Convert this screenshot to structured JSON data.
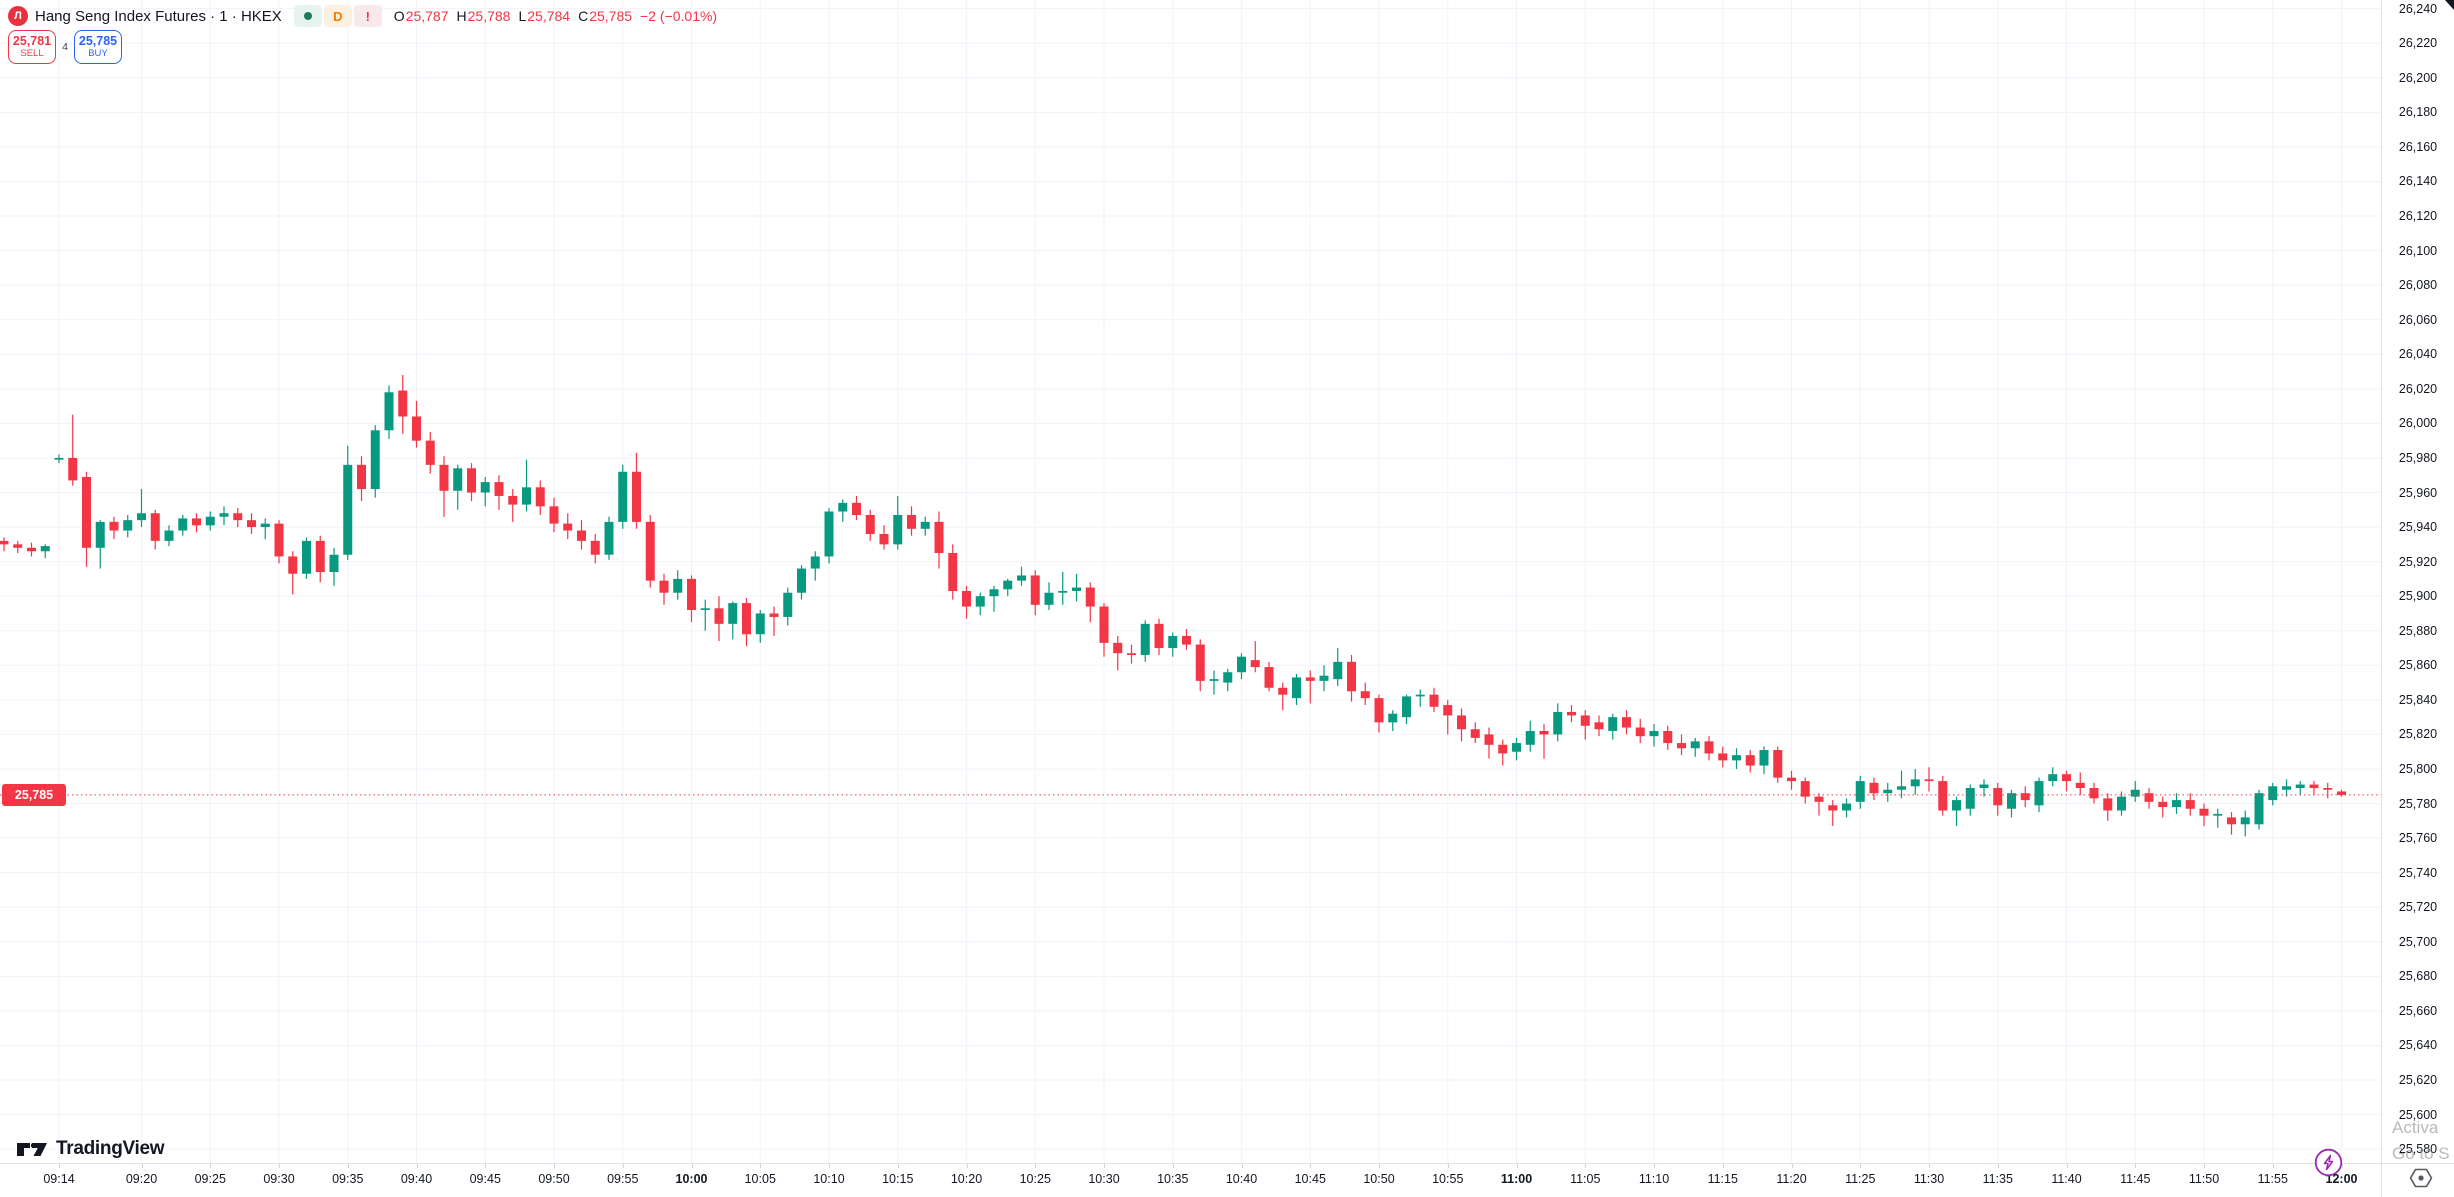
{
  "header": {
    "logo_glyph": "Л",
    "symbol_title": "Hang Seng Index Futures · 1 · HKEX",
    "badges": {
      "market_status": "open",
      "delayed_label": "D",
      "alert_label": "!"
    },
    "ohlc": {
      "o_label": "O",
      "o": "25,787",
      "h_label": "H",
      "h": "25,788",
      "l_label": "L",
      "l": "25,784",
      "c_label": "C",
      "c": "25,785",
      "change": "−2 (−0.01%)"
    }
  },
  "order_panel": {
    "sell_price": "25,781",
    "sell_label": "SELL",
    "spread": "4",
    "buy_price": "25,785",
    "buy_label": "BUY"
  },
  "brand": {
    "name": "TradingView"
  },
  "price_axis": {
    "labels": [
      "26,240",
      "26,220",
      "26,200",
      "26,180",
      "26,160",
      "26,140",
      "26,120",
      "26,100",
      "26,080",
      "26,060",
      "26,040",
      "26,020",
      "26,000",
      "25,980",
      "25,960",
      "25,940",
      "25,920",
      "25,900",
      "25,880",
      "25,860",
      "25,840",
      "25,820",
      "25,800",
      "25,780",
      "25,760",
      "25,740",
      "25,720",
      "25,700",
      "25,680",
      "25,660",
      "25,640",
      "25,620",
      "25,600",
      "25,580"
    ],
    "last_price_tag": "25,785"
  },
  "time_axis": {
    "labels": [
      {
        "label": "09:14",
        "bold": false
      },
      {
        "label": "09:20",
        "bold": false
      },
      {
        "label": "09:25",
        "bold": false
      },
      {
        "label": "09:30",
        "bold": false
      },
      {
        "label": "09:35",
        "bold": false
      },
      {
        "label": "09:40",
        "bold": false
      },
      {
        "label": "09:45",
        "bold": false
      },
      {
        "label": "09:50",
        "bold": false
      },
      {
        "label": "09:55",
        "bold": false
      },
      {
        "label": "10:00",
        "bold": true
      },
      {
        "label": "10:05",
        "bold": false
      },
      {
        "label": "10:10",
        "bold": false
      },
      {
        "label": "10:15",
        "bold": false
      },
      {
        "label": "10:20",
        "bold": false
      },
      {
        "label": "10:25",
        "bold": false
      },
      {
        "label": "10:30",
        "bold": false
      },
      {
        "label": "10:35",
        "bold": false
      },
      {
        "label": "10:40",
        "bold": false
      },
      {
        "label": "10:45",
        "bold": false
      },
      {
        "label": "10:50",
        "bold": false
      },
      {
        "label": "10:55",
        "bold": false
      },
      {
        "label": "11:00",
        "bold": true
      },
      {
        "label": "11:05",
        "bold": false
      },
      {
        "label": "11:10",
        "bold": false
      },
      {
        "label": "11:15",
        "bold": false
      },
      {
        "label": "11:20",
        "bold": false
      },
      {
        "label": "11:25",
        "bold": false
      },
      {
        "label": "11:30",
        "bold": false
      },
      {
        "label": "11:35",
        "bold": false
      },
      {
        "label": "11:40",
        "bold": false
      },
      {
        "label": "11:45",
        "bold": false
      },
      {
        "label": "11:50",
        "bold": false
      },
      {
        "label": "11:55",
        "bold": false
      },
      {
        "label": "12:00",
        "bold": true
      }
    ]
  },
  "os_watermark": {
    "line1": "Activa",
    "line2": "Go to S"
  },
  "chart_data": {
    "type": "candlestick",
    "title": "Hang Seng Index Futures, 1, HKEX",
    "interval": "1",
    "visible_time_range": [
      "09:10",
      "12:00"
    ],
    "ylim": [
      25572,
      26245
    ],
    "grid": true,
    "price_line": 25785,
    "colors": {
      "up": "#089981",
      "down": "#f23645",
      "grid": "#f0f3fa",
      "price_line": "#f23645"
    },
    "candles": [
      [
        "09:10",
        25932,
        25934,
        25926,
        25930
      ],
      [
        "09:11",
        25930,
        25932,
        25925,
        25928
      ],
      [
        "09:12",
        25928,
        25931,
        25923,
        25926
      ],
      [
        "09:13",
        25926,
        25930,
        25922,
        25929
      ],
      [
        "09:14",
        25979,
        25982,
        25977,
        25980
      ],
      [
        "09:15",
        25980,
        26005,
        25964,
        25967
      ],
      [
        "09:16",
        25969,
        25972,
        25917,
        25928
      ],
      [
        "09:17",
        25928,
        25944,
        25916,
        25943
      ],
      [
        "09:18",
        25943,
        25946,
        25933,
        25938
      ],
      [
        "09:19",
        25938,
        25947,
        25934,
        25944
      ],
      [
        "09:20",
        25944,
        25962,
        25940,
        25948
      ],
      [
        "09:21",
        25948,
        25950,
        25927,
        25932
      ],
      [
        "09:22",
        25932,
        25941,
        25929,
        25938
      ],
      [
        "09:23",
        25938,
        25947,
        25935,
        25945
      ],
      [
        "09:24",
        25945,
        25948,
        25937,
        25941
      ],
      [
        "09:25",
        25941,
        25949,
        25938,
        25946
      ],
      [
        "09:26",
        25946,
        25952,
        25941,
        25948
      ],
      [
        "09:27",
        25948,
        25951,
        25940,
        25944
      ],
      [
        "09:28",
        25944,
        25948,
        25936,
        25940
      ],
      [
        "09:29",
        25940,
        25945,
        25933,
        25942
      ],
      [
        "09:30",
        25942,
        25944,
        25919,
        25923
      ],
      [
        "09:31",
        25923,
        25926,
        25901,
        25913
      ],
      [
        "09:32",
        25913,
        25934,
        25910,
        25932
      ],
      [
        "09:33",
        25932,
        25935,
        25908,
        25914
      ],
      [
        "09:34",
        25914,
        25928,
        25906,
        25924
      ],
      [
        "09:35",
        25924,
        25987,
        25921,
        25976
      ],
      [
        "09:36",
        25976,
        25981,
        25955,
        25962
      ],
      [
        "09:37",
        25962,
        25999,
        25957,
        25996
      ],
      [
        "09:38",
        25996,
        26022,
        25991,
        26018
      ],
      [
        "09:39",
        26019,
        26028,
        25994,
        26004
      ],
      [
        "09:40",
        26004,
        26013,
        25986,
        25990
      ],
      [
        "09:41",
        25990,
        25995,
        25971,
        25976
      ],
      [
        "09:42",
        25976,
        25981,
        25946,
        25961
      ],
      [
        "09:43",
        25961,
        25976,
        25950,
        25974
      ],
      [
        "09:44",
        25974,
        25977,
        25955,
        25960
      ],
      [
        "09:45",
        25960,
        25969,
        25952,
        25966
      ],
      [
        "09:46",
        25966,
        25970,
        25950,
        25958
      ],
      [
        "09:47",
        25958,
        25962,
        25943,
        25953
      ],
      [
        "09:48",
        25953,
        25979,
        25949,
        25963
      ],
      [
        "09:49",
        25963,
        25967,
        25947,
        25952
      ],
      [
        "09:50",
        25952,
        25957,
        25937,
        25942
      ],
      [
        "09:51",
        25942,
        25948,
        25933,
        25938
      ],
      [
        "09:52",
        25938,
        25944,
        25927,
        25932
      ],
      [
        "09:53",
        25932,
        25936,
        25919,
        25924
      ],
      [
        "09:54",
        25924,
        25946,
        25921,
        25943
      ],
      [
        "09:55",
        25943,
        25976,
        25939,
        25972
      ],
      [
        "09:56",
        25972,
        25983,
        25939,
        25943
      ],
      [
        "09:57",
        25943,
        25947,
        25905,
        25909
      ],
      [
        "09:58",
        25909,
        25913,
        25895,
        25902
      ],
      [
        "09:59",
        25902,
        25915,
        25898,
        25910
      ],
      [
        "10:00",
        25910,
        25912,
        25885,
        25892
      ],
      [
        "10:01",
        25892,
        25898,
        25880,
        25893
      ],
      [
        "10:02",
        25893,
        25900,
        25874,
        25884
      ],
      [
        "10:03",
        25884,
        25897,
        25875,
        25896
      ],
      [
        "10:04",
        25896,
        25899,
        25871,
        25878
      ],
      [
        "10:05",
        25878,
        25892,
        25873,
        25890
      ],
      [
        "10:06",
        25890,
        25894,
        25877,
        25888
      ],
      [
        "10:07",
        25888,
        25905,
        25883,
        25902
      ],
      [
        "10:08",
        25902,
        25918,
        25898,
        25916
      ],
      [
        "10:09",
        25916,
        25926,
        25909,
        25923
      ],
      [
        "10:10",
        25923,
        25951,
        25919,
        25949
      ],
      [
        "10:11",
        25949,
        25956,
        25943,
        25954
      ],
      [
        "10:12",
        25954,
        25958,
        25944,
        25947
      ],
      [
        "10:13",
        25947,
        25950,
        25932,
        25936
      ],
      [
        "10:14",
        25936,
        25941,
        25927,
        25930
      ],
      [
        "10:15",
        25930,
        25958,
        25927,
        25947
      ],
      [
        "10:16",
        25947,
        25952,
        25935,
        25939
      ],
      [
        "10:17",
        25939,
        25946,
        25935,
        25943
      ],
      [
        "10:18",
        25943,
        25949,
        25916,
        25925
      ],
      [
        "10:19",
        25925,
        25930,
        25898,
        25903
      ],
      [
        "10:20",
        25903,
        25906,
        25887,
        25894
      ],
      [
        "10:21",
        25894,
        25902,
        25889,
        25900
      ],
      [
        "10:22",
        25900,
        25906,
        25891,
        25904
      ],
      [
        "10:23",
        25904,
        25910,
        25900,
        25909
      ],
      [
        "10:24",
        25909,
        25917,
        25906,
        25912
      ],
      [
        "10:25",
        25912,
        25915,
        25889,
        25895
      ],
      [
        "10:26",
        25895,
        25908,
        25892,
        25902
      ],
      [
        "10:27",
        25902,
        25914,
        25895,
        25903
      ],
      [
        "10:28",
        25903,
        25913,
        25897,
        25905
      ],
      [
        "10:29",
        25905,
        25908,
        25885,
        25894
      ],
      [
        "10:30",
        25894,
        25896,
        25865,
        25873
      ],
      [
        "10:31",
        25873,
        25877,
        25857,
        25867
      ],
      [
        "10:32",
        25867,
        25872,
        25861,
        25866
      ],
      [
        "10:33",
        25866,
        25886,
        25862,
        25884
      ],
      [
        "10:34",
        25884,
        25887,
        25866,
        25870
      ],
      [
        "10:35",
        25870,
        25879,
        25865,
        25877
      ],
      [
        "10:36",
        25877,
        25881,
        25869,
        25872
      ],
      [
        "10:37",
        25872,
        25875,
        25845,
        25851
      ],
      [
        "10:38",
        25851,
        25857,
        25843,
        25852
      ],
      [
        "10:39",
        25850,
        25858,
        25845,
        25856
      ],
      [
        "10:40",
        25856,
        25867,
        25852,
        25865
      ],
      [
        "10:41",
        25863,
        25874,
        25856,
        25859
      ],
      [
        "10:42",
        25859,
        25862,
        25845,
        25847
      ],
      [
        "10:43",
        25847,
        25850,
        25834,
        25843
      ],
      [
        "10:44",
        25841,
        25855,
        25837,
        25853
      ],
      [
        "10:45",
        25853,
        25857,
        25838,
        25851
      ],
      [
        "10:46",
        25851,
        25860,
        25845,
        25854
      ],
      [
        "10:47",
        25852,
        25870,
        25848,
        25862
      ],
      [
        "10:48",
        25862,
        25866,
        25839,
        25845
      ],
      [
        "10:49",
        25845,
        25850,
        25837,
        25841
      ],
      [
        "10:50",
        25841,
        25843,
        25821,
        25827
      ],
      [
        "10:51",
        25827,
        25834,
        25822,
        25832
      ],
      [
        "10:52",
        25830,
        25843,
        25826,
        25842
      ],
      [
        "10:53",
        25842,
        25846,
        25836,
        25843
      ],
      [
        "10:54",
        25843,
        25847,
        25833,
        25836
      ],
      [
        "10:55",
        25837,
        25840,
        25820,
        25831
      ],
      [
        "10:56",
        25831,
        25835,
        25816,
        25823
      ],
      [
        "10:57",
        25823,
        25827,
        25815,
        25818
      ],
      [
        "10:58",
        25820,
        25824,
        25806,
        25814
      ],
      [
        "10:59",
        25814,
        25817,
        25802,
        25809
      ],
      [
        "11:00",
        25810,
        25818,
        25805,
        25815
      ],
      [
        "11:01",
        25814,
        25828,
        25810,
        25822
      ],
      [
        "11:02",
        25822,
        25826,
        25806,
        25820
      ],
      [
        "11:03",
        25820,
        25838,
        25816,
        25833
      ],
      [
        "11:04",
        25833,
        25837,
        25827,
        25831
      ],
      [
        "11:05",
        25831,
        25834,
        25817,
        25825
      ],
      [
        "11:06",
        25827,
        25831,
        25819,
        25823
      ],
      [
        "11:07",
        25822,
        25832,
        25817,
        25830
      ],
      [
        "11:08",
        25830,
        25834,
        25820,
        25824
      ],
      [
        "11:09",
        25824,
        25829,
        25815,
        25819
      ],
      [
        "11:10",
        25819,
        25826,
        25813,
        25822
      ],
      [
        "11:11",
        25822,
        25825,
        25811,
        25815
      ],
      [
        "11:12",
        25815,
        25820,
        25808,
        25812
      ],
      [
        "11:13",
        25812,
        25818,
        25807,
        25816
      ],
      [
        "11:14",
        25816,
        25819,
        25805,
        25809
      ],
      [
        "11:15",
        25809,
        25813,
        25801,
        25805
      ],
      [
        "11:16",
        25805,
        25812,
        25800,
        25808
      ],
      [
        "11:17",
        25808,
        25811,
        25798,
        25802
      ],
      [
        "11:18",
        25802,
        25813,
        25797,
        25811
      ],
      [
        "11:19",
        25811,
        25813,
        25792,
        25795
      ],
      [
        "11:20",
        25795,
        25799,
        25788,
        25793
      ],
      [
        "11:21",
        25793,
        25795,
        25780,
        25784
      ],
      [
        "11:22",
        25784,
        25786,
        25773,
        25781
      ],
      [
        "11:23",
        25779,
        25782,
        25767,
        25776
      ],
      [
        "11:24",
        25776,
        25783,
        25772,
        25780
      ],
      [
        "11:25",
        25781,
        25796,
        25777,
        25793
      ],
      [
        "11:26",
        25792,
        25795,
        25782,
        25786
      ],
      [
        "11:27",
        25786,
        25792,
        25781,
        25788
      ],
      [
        "11:28",
        25788,
        25799,
        25783,
        25790
      ],
      [
        "11:29",
        25790,
        25800,
        25785,
        25794
      ],
      [
        "11:30",
        25794,
        25801,
        25787,
        25793
      ],
      [
        "11:31",
        25793,
        25796,
        25773,
        25776
      ],
      [
        "11:32",
        25776,
        25784,
        25767,
        25782
      ],
      [
        "11:33",
        25777,
        25791,
        25773,
        25789
      ],
      [
        "11:34",
        25789,
        25794,
        25784,
        25791
      ],
      [
        "11:35",
        25789,
        25792,
        25773,
        25779
      ],
      [
        "11:36",
        25777,
        25788,
        25772,
        25786
      ],
      [
        "11:37",
        25786,
        25790,
        25778,
        25782
      ],
      [
        "11:38",
        25779,
        25795,
        25775,
        25793
      ],
      [
        "11:39",
        25793,
        25801,
        25790,
        25797
      ],
      [
        "11:40",
        25797,
        25799,
        25787,
        25793
      ],
      [
        "11:41",
        25792,
        25798,
        25785,
        25789
      ],
      [
        "11:42",
        25789,
        25792,
        25780,
        25783
      ],
      [
        "11:43",
        25783,
        25786,
        25770,
        25776
      ],
      [
        "11:44",
        25776,
        25787,
        25773,
        25784
      ],
      [
        "11:45",
        25784,
        25793,
        25781,
        25788
      ],
      [
        "11:46",
        25786,
        25789,
        25777,
        25781
      ],
      [
        "11:47",
        25781,
        25784,
        25772,
        25778
      ],
      [
        "11:48",
        25778,
        25786,
        25774,
        25782
      ],
      [
        "11:49",
        25782,
        25786,
        25773,
        25777
      ],
      [
        "11:50",
        25777,
        25780,
        25767,
        25773
      ],
      [
        "11:51",
        25773,
        25777,
        25766,
        25774
      ],
      [
        "11:52",
        25772,
        25775,
        25762,
        25768
      ],
      [
        "11:53",
        25768,
        25776,
        25761,
        25772
      ],
      [
        "11:54",
        25768,
        25788,
        25765,
        25786
      ],
      [
        "11:55",
        25782,
        25792,
        25779,
        25790
      ],
      [
        "11:56",
        25788,
        25794,
        25784,
        25790
      ],
      [
        "11:57",
        25789,
        25793,
        25785,
        25791
      ],
      [
        "11:58",
        25791,
        25793,
        25785,
        25789
      ],
      [
        "11:59",
        25789,
        25792,
        25783,
        25788
      ],
      [
        "12:00",
        25787,
        25788,
        25784,
        25785
      ]
    ]
  }
}
